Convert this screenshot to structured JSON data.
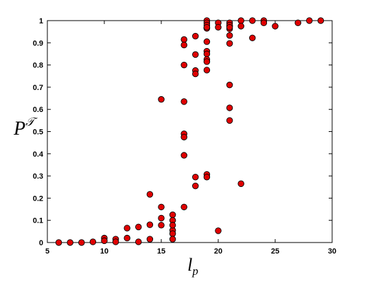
{
  "chart_data": {
    "type": "scatter",
    "title": "",
    "xlabel_base": "l",
    "xlabel_sub": "p",
    "ylabel_base": "P",
    "ylabel_sup": "𝒯",
    "xlim": [
      5,
      30
    ],
    "ylim": [
      0,
      1
    ],
    "xticks": [
      5,
      10,
      15,
      20,
      25,
      30
    ],
    "yticks": [
      0,
      0.1,
      0.2,
      0.3,
      0.4,
      0.5,
      0.6,
      0.7,
      0.8,
      0.9,
      1
    ],
    "xtick_labels": [
      "5",
      "10",
      "15",
      "20",
      "25",
      "30"
    ],
    "ytick_labels": [
      "0",
      "0.1",
      "0.2",
      "0.3",
      "0.4",
      "0.5",
      "0.6",
      "0.7",
      "0.8",
      "0.9",
      "1"
    ],
    "grid": false,
    "legend": "none",
    "marker_color": "#e00000",
    "marker_edge": "#000000",
    "series": [
      {
        "x": [
          6,
          7,
          8,
          9,
          10,
          10,
          11,
          11,
          12,
          12,
          13,
          13,
          14,
          14,
          14,
          15,
          15,
          15,
          15,
          16,
          16,
          16,
          16,
          16,
          16,
          17,
          17,
          17,
          17,
          17,
          17,
          17,
          17,
          18,
          18,
          18,
          18,
          18,
          18,
          19,
          19,
          19,
          19,
          19,
          19,
          19,
          19,
          19,
          19,
          19,
          19,
          19,
          19,
          20,
          20,
          20,
          21,
          21,
          21,
          21,
          21,
          21,
          21,
          21,
          21,
          21,
          22,
          22,
          22,
          23,
          23,
          24,
          24,
          25,
          27,
          28,
          29
        ],
        "y": [
          0.0,
          0.0,
          0.0,
          0.003,
          0.02,
          0.008,
          0.015,
          0.003,
          0.065,
          0.02,
          0.07,
          0.003,
          0.217,
          0.08,
          0.015,
          0.645,
          0.16,
          0.11,
          0.078,
          0.125,
          0.1,
          0.055,
          0.04,
          0.015,
          0.078,
          0.915,
          0.89,
          0.635,
          0.49,
          0.475,
          0.393,
          0.16,
          0.8,
          0.93,
          0.847,
          0.775,
          0.76,
          0.295,
          0.255,
          1.0,
          0.99,
          0.98,
          0.967,
          0.965,
          0.905,
          0.862,
          0.85,
          0.825,
          0.815,
          0.777,
          0.307,
          0.295,
          0.97,
          0.99,
          0.97,
          0.053,
          0.99,
          0.975,
          0.963,
          0.933,
          0.897,
          0.71,
          0.607,
          0.55,
          0.98,
          0.97,
          1.0,
          0.975,
          0.265,
          1.0,
          0.922,
          1.0,
          0.99,
          0.975,
          0.99,
          1.0,
          1.0
        ]
      }
    ]
  }
}
